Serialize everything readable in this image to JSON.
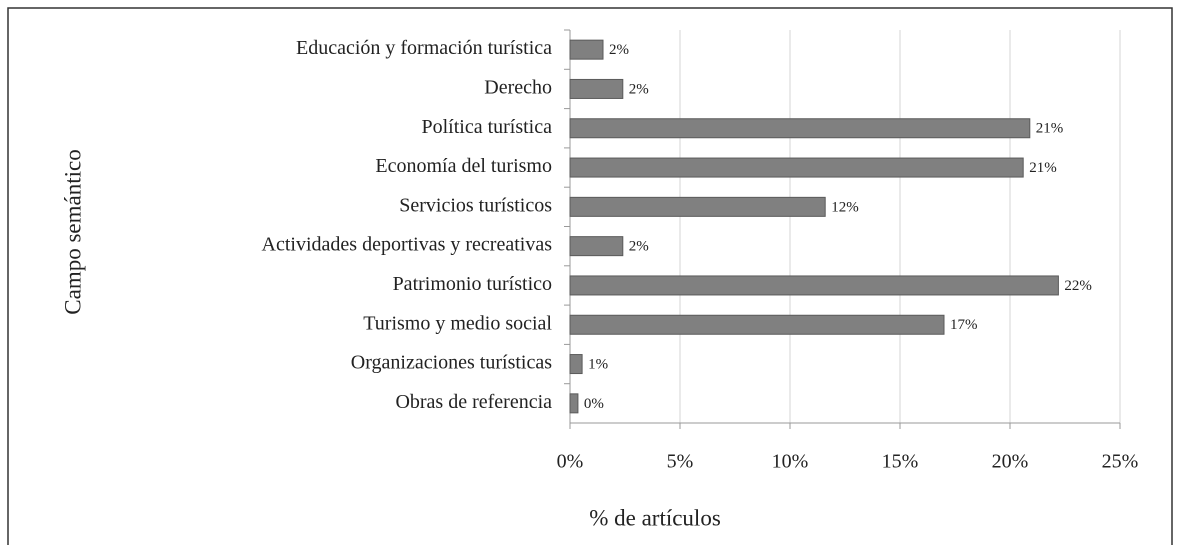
{
  "chart_data": {
    "type": "bar",
    "orientation": "horizontal",
    "x_label": "% de artículos",
    "y_label": "Campo semántico",
    "categories": [
      "Educación y formación turística",
      "Derecho",
      "Política turística",
      "Economía del turismo",
      "Servicios turísticos",
      "Actividades deportivas y recreativas",
      "Patrimonio turístico",
      "Turismo y medio social",
      "Organizaciones turísticas",
      "Obras de referencia"
    ],
    "values": [
      1.5,
      2.4,
      20.9,
      20.6,
      11.6,
      2.4,
      22.2,
      17.0,
      0.55,
      0.36
    ],
    "value_labels": [
      "2%",
      "2%",
      "21%",
      "21%",
      "12%",
      "2%",
      "22%",
      "17%",
      "1%",
      "0%"
    ],
    "color": "#808080",
    "xlim": [
      0,
      25
    ],
    "xticks": [
      {
        "value": 0,
        "label": "0%"
      },
      {
        "value": 5,
        "label": "5%"
      },
      {
        "value": 10,
        "label": "10%"
      },
      {
        "value": 15,
        "label": "15%"
      },
      {
        "value": 20,
        "label": "20%"
      },
      {
        "value": 25,
        "label": "25%"
      }
    ],
    "grid": true
  }
}
